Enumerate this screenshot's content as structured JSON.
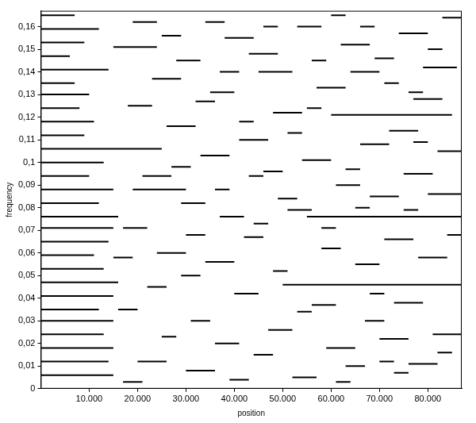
{
  "chart_data": {
    "type": "line",
    "x_label": "position",
    "y_label": "frequency",
    "xlim": [
      0,
      87000
    ],
    "ylim": [
      0,
      0.167
    ],
    "xticks": [
      {
        "value": 10000,
        "label": "10.000"
      },
      {
        "value": 20000,
        "label": "20.000"
      },
      {
        "value": 30000,
        "label": "30.000"
      },
      {
        "value": 40000,
        "label": "40.000"
      },
      {
        "value": 50000,
        "label": "50.000"
      },
      {
        "value": 60000,
        "label": "60.000"
      },
      {
        "value": 70000,
        "label": "70.000"
      },
      {
        "value": 80000,
        "label": "80.000"
      }
    ],
    "yticks": [
      0,
      {
        "value": 0.01,
        "label": "0,01"
      },
      {
        "value": 0.02,
        "label": "0,02"
      },
      {
        "value": 0.03,
        "label": "0,03"
      },
      {
        "value": 0.04,
        "label": "0,04"
      },
      {
        "value": 0.05,
        "label": "0,05"
      },
      {
        "value": 0.06,
        "label": "0,06"
      },
      {
        "value": 0.07,
        "label": "0,07"
      },
      {
        "value": 0.08,
        "label": "0,08"
      },
      {
        "value": 0.09,
        "label": "0,09"
      },
      {
        "value": 0.1,
        "label": "0,1"
      },
      {
        "value": 0.11,
        "label": "0,11"
      },
      {
        "value": 0.12,
        "label": "0,12"
      },
      {
        "value": 0.13,
        "label": "0,13"
      },
      {
        "value": 0.14,
        "label": "0,14"
      },
      {
        "value": 0.15,
        "label": "0,15"
      },
      {
        "value": 0.16,
        "label": "0,16"
      }
    ],
    "grid": false,
    "color": "#000000",
    "segments": [
      [
        0,
        15000,
        0.006
      ],
      [
        0,
        14000,
        0.012
      ],
      [
        0,
        15000,
        0.018
      ],
      [
        0,
        13000,
        0.024
      ],
      [
        0,
        15000,
        0.03
      ],
      [
        0,
        12000,
        0.035
      ],
      [
        0,
        15000,
        0.041
      ],
      [
        0,
        16000,
        0.047
      ],
      [
        0,
        13000,
        0.053
      ],
      [
        0,
        11000,
        0.059
      ],
      [
        0,
        14000,
        0.065
      ],
      [
        0,
        15000,
        0.071
      ],
      [
        0,
        16000,
        0.076
      ],
      [
        0,
        12000,
        0.082
      ],
      [
        0,
        15000,
        0.088
      ],
      [
        0,
        10000,
        0.094
      ],
      [
        0,
        13000,
        0.1
      ],
      [
        0,
        16000,
        0.106
      ],
      [
        0,
        9000,
        0.112
      ],
      [
        0,
        11000,
        0.118
      ],
      [
        0,
        8000,
        0.124
      ],
      [
        0,
        10000,
        0.13
      ],
      [
        0,
        7000,
        0.135
      ],
      [
        0,
        14000,
        0.141
      ],
      [
        0,
        6000,
        0.147
      ],
      [
        0,
        9000,
        0.153
      ],
      [
        0,
        12000,
        0.159
      ],
      [
        0,
        7000,
        0.165
      ],
      [
        16000,
        25000,
        0.106
      ],
      [
        19000,
        30000,
        0.088
      ],
      [
        15000,
        24000,
        0.151
      ],
      [
        17000,
        22000,
        0.071
      ],
      [
        21000,
        27000,
        0.094
      ],
      [
        18000,
        23000,
        0.125
      ],
      [
        23000,
        29000,
        0.137
      ],
      [
        16000,
        20000,
        0.035
      ],
      [
        20000,
        26000,
        0.012
      ],
      [
        24000,
        30000,
        0.06
      ],
      [
        26000,
        32000,
        0.116
      ],
      [
        28000,
        33000,
        0.145
      ],
      [
        30000,
        36000,
        0.008
      ],
      [
        31000,
        35000,
        0.03
      ],
      [
        29000,
        34000,
        0.082
      ],
      [
        33000,
        39000,
        0.103
      ],
      [
        34000,
        40000,
        0.056
      ],
      [
        35000,
        40000,
        0.131
      ],
      [
        36000,
        41000,
        0.02
      ],
      [
        37000,
        42000,
        0.076
      ],
      [
        38000,
        44000,
        0.155
      ],
      [
        40000,
        45000,
        0.042
      ],
      [
        41000,
        47000,
        0.11
      ],
      [
        42000,
        46000,
        0.067
      ],
      [
        43000,
        49000,
        0.148
      ],
      [
        44000,
        48000,
        0.015
      ],
      [
        45000,
        52000,
        0.14
      ],
      [
        46000,
        50000,
        0.096
      ],
      [
        47000,
        52000,
        0.026
      ],
      [
        48000,
        54000,
        0.122
      ],
      [
        50000,
        87000,
        0.046
      ],
      [
        51000,
        56000,
        0.079
      ],
      [
        52000,
        57000,
        0.005
      ],
      [
        53000,
        58000,
        0.16
      ],
      [
        54000,
        60000,
        0.101
      ],
      [
        55000,
        87000,
        0.076
      ],
      [
        56000,
        61000,
        0.037
      ],
      [
        57000,
        63000,
        0.133
      ],
      [
        58000,
        62000,
        0.062
      ],
      [
        59000,
        65000,
        0.018
      ],
      [
        60000,
        85000,
        0.121
      ],
      [
        61000,
        66000,
        0.09
      ],
      [
        62000,
        68000,
        0.152
      ],
      [
        63000,
        67000,
        0.01
      ],
      [
        64000,
        70000,
        0.14
      ],
      [
        65000,
        70000,
        0.055
      ],
      [
        66000,
        72000,
        0.108
      ],
      [
        67000,
        71000,
        0.03
      ],
      [
        68000,
        74000,
        0.085
      ],
      [
        69000,
        73000,
        0.146
      ],
      [
        70000,
        76000,
        0.022
      ],
      [
        71000,
        77000,
        0.066
      ],
      [
        72000,
        78000,
        0.114
      ],
      [
        73000,
        79000,
        0.038
      ],
      [
        74000,
        80000,
        0.157
      ],
      [
        75000,
        81000,
        0.095
      ],
      [
        76000,
        82000,
        0.011
      ],
      [
        77000,
        83000,
        0.128
      ],
      [
        78000,
        84000,
        0.058
      ],
      [
        79000,
        86000,
        0.142
      ],
      [
        80000,
        87000,
        0.086
      ],
      [
        81000,
        87000,
        0.024
      ],
      [
        82000,
        87000,
        0.105
      ],
      [
        83000,
        87000,
        0.164
      ],
      [
        15000,
        19000,
        0.058
      ],
      [
        17000,
        21000,
        0.003
      ],
      [
        19000,
        24000,
        0.162
      ],
      [
        22000,
        26000,
        0.045
      ],
      [
        25000,
        28000,
        0.023
      ],
      [
        27000,
        31000,
        0.098
      ],
      [
        29000,
        33000,
        0.05
      ],
      [
        32000,
        36000,
        0.127
      ],
      [
        34000,
        38000,
        0.162
      ],
      [
        36000,
        39000,
        0.088
      ],
      [
        39000,
        43000,
        0.004
      ],
      [
        41000,
        44000,
        0.118
      ],
      [
        44000,
        47000,
        0.073
      ],
      [
        46000,
        49000,
        0.16
      ],
      [
        49000,
        53000,
        0.084
      ],
      [
        51000,
        54000,
        0.113
      ],
      [
        53000,
        56000,
        0.034
      ],
      [
        56000,
        59000,
        0.145
      ],
      [
        58000,
        61000,
        0.071
      ],
      [
        61000,
        64000,
        0.003
      ],
      [
        63000,
        66000,
        0.097
      ],
      [
        66000,
        69000,
        0.16
      ],
      [
        68000,
        71000,
        0.042
      ],
      [
        71000,
        74000,
        0.135
      ],
      [
        73000,
        76000,
        0.007
      ],
      [
        75000,
        78000,
        0.079
      ],
      [
        77000,
        80000,
        0.109
      ],
      [
        80000,
        83000,
        0.15
      ],
      [
        82000,
        85000,
        0.016
      ],
      [
        84000,
        87000,
        0.068
      ],
      [
        25000,
        29000,
        0.156
      ],
      [
        30000,
        34000,
        0.068
      ],
      [
        37000,
        41000,
        0.14
      ],
      [
        43000,
        46000,
        0.094
      ],
      [
        48000,
        51000,
        0.052
      ],
      [
        55000,
        58000,
        0.124
      ],
      [
        60000,
        63000,
        0.165
      ],
      [
        65000,
        68000,
        0.08
      ],
      [
        70000,
        73000,
        0.012
      ],
      [
        76000,
        79000,
        0.131
      ]
    ]
  }
}
